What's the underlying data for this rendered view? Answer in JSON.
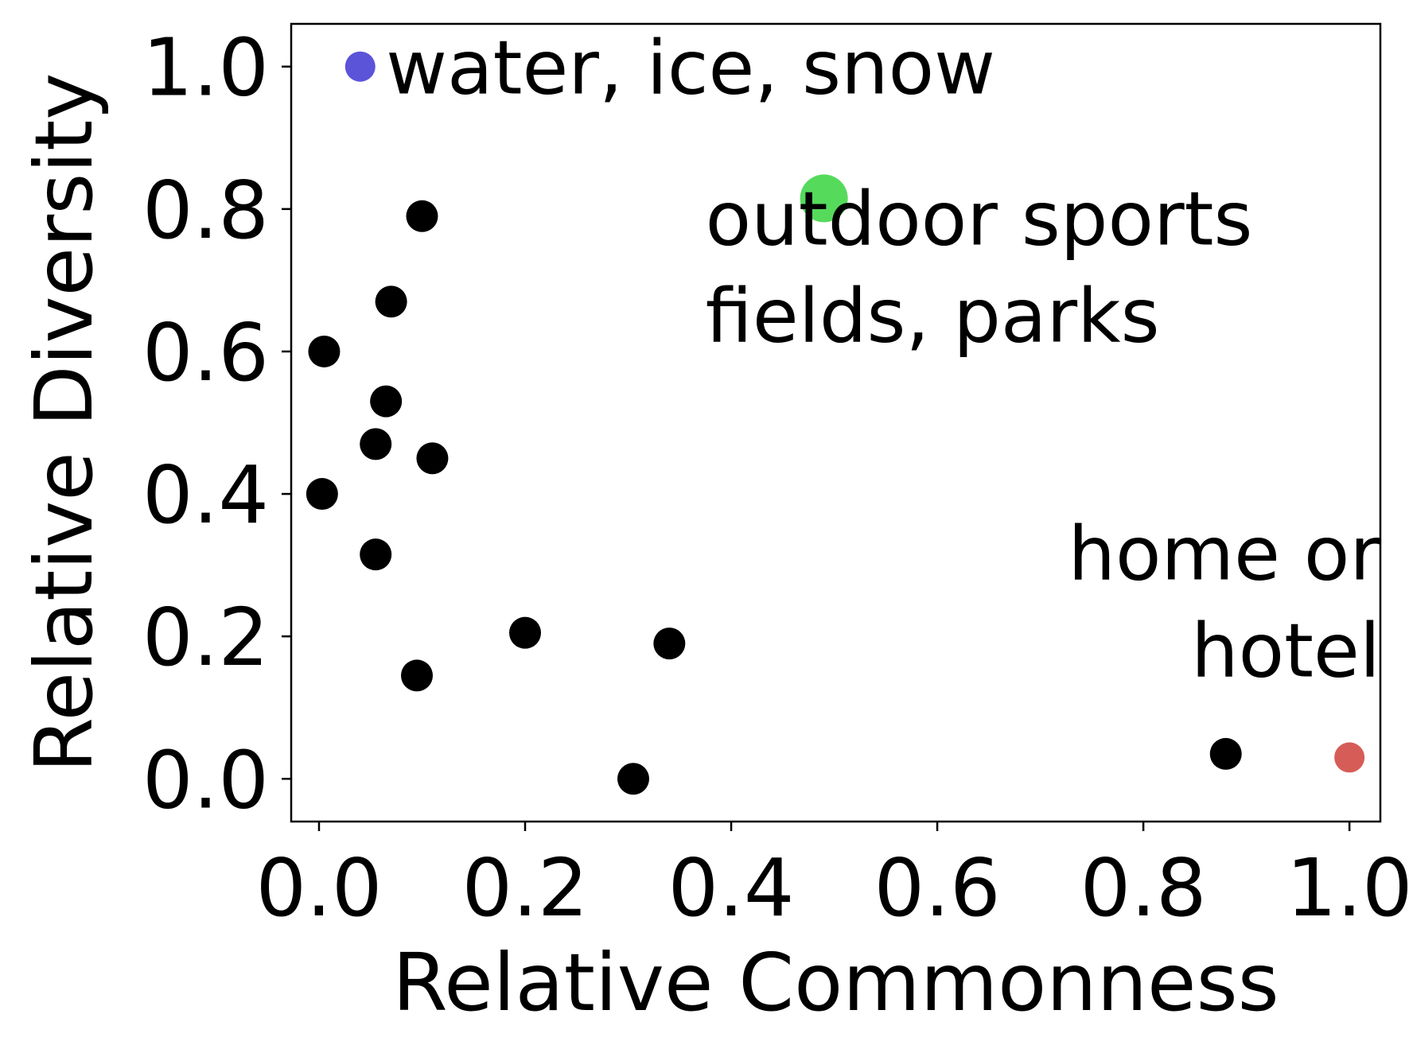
{
  "chart_data": {
    "type": "scatter",
    "xlabel": "Relative Commonness",
    "ylabel": "Relative Diversity",
    "xlim": [
      -0.027,
      1.03
    ],
    "ylim": [
      -0.06,
      1.06
    ],
    "xticks": [
      "0.0",
      "0.2",
      "0.4",
      "0.6",
      "0.8",
      "1.0"
    ],
    "yticks": [
      "0.0",
      "0.2",
      "0.4",
      "0.6",
      "0.8",
      "1.0"
    ],
    "grid": false,
    "points": [
      {
        "x": 0.04,
        "y": 1.0,
        "color": "#5b54d9",
        "size": "small"
      },
      {
        "x": 0.49,
        "y": 0.815,
        "color": "#56da5b",
        "size": "large"
      },
      {
        "x": 1.0,
        "y": 0.03,
        "color": "#d65c57",
        "size": "small"
      },
      {
        "x": 0.1,
        "y": 0.79,
        "color": "#000000",
        "size": "normal"
      },
      {
        "x": 0.07,
        "y": 0.67,
        "color": "#000000",
        "size": "normal"
      },
      {
        "x": 0.005,
        "y": 0.6,
        "color": "#000000",
        "size": "normal"
      },
      {
        "x": 0.065,
        "y": 0.53,
        "color": "#000000",
        "size": "normal"
      },
      {
        "x": 0.055,
        "y": 0.47,
        "color": "#000000",
        "size": "normal"
      },
      {
        "x": 0.11,
        "y": 0.45,
        "color": "#000000",
        "size": "normal"
      },
      {
        "x": 0.003,
        "y": 0.4,
        "color": "#000000",
        "size": "normal"
      },
      {
        "x": 0.055,
        "y": 0.315,
        "color": "#000000",
        "size": "normal"
      },
      {
        "x": 0.2,
        "y": 0.205,
        "color": "#000000",
        "size": "normal"
      },
      {
        "x": 0.34,
        "y": 0.19,
        "color": "#000000",
        "size": "normal"
      },
      {
        "x": 0.095,
        "y": 0.145,
        "color": "#000000",
        "size": "normal"
      },
      {
        "x": 0.305,
        "y": 0.0,
        "color": "#000000",
        "size": "normal"
      },
      {
        "x": 0.88,
        "y": 0.035,
        "color": "#000000",
        "size": "normal"
      }
    ],
    "annotations": [
      {
        "lines": [
          "water, ice, snow"
        ],
        "x": 0.065,
        "y": 1.0,
        "anchor": "start",
        "baseline": "middle"
      },
      {
        "lines": [
          "outdoor sports",
          "fields, parks"
        ],
        "x": 0.375,
        "y": 0.72,
        "anchor": "start",
        "baseline": "middle"
      },
      {
        "lines": [
          "home or",
          "hotel"
        ],
        "x": 1.03,
        "y": 0.25,
        "anchor": "end",
        "baseline": "middle"
      }
    ]
  }
}
